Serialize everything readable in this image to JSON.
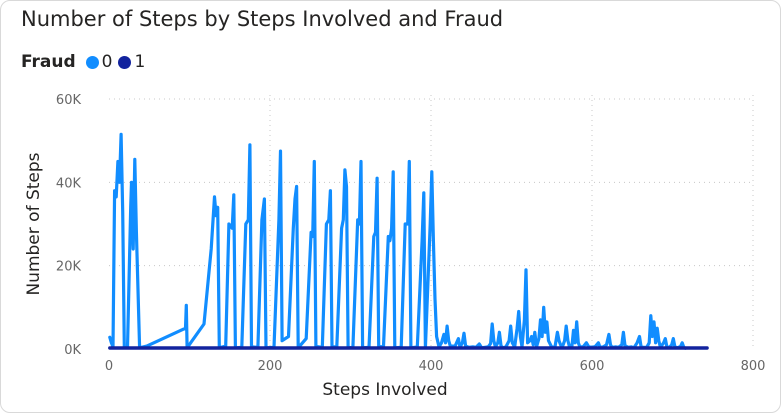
{
  "chart_data": {
    "type": "line",
    "title": "Number of Steps by Steps Involved and Fraud",
    "xlabel": "Steps Involved",
    "ylabel": "Number of Steps",
    "xlim": [
      0,
      800
    ],
    "ylim": [
      0,
      60000
    ],
    "x_ticks": [
      "0",
      "200",
      "400",
      "600",
      "800"
    ],
    "y_ticks": [
      "0K",
      "20K",
      "40K",
      "60K"
    ],
    "grid": true,
    "legend": {
      "title": "Fraud",
      "position": "top-left"
    },
    "series": [
      {
        "name": "0",
        "color": "#118DFF",
        "points": [
          [
            1,
            2800
          ],
          [
            3,
            1500
          ],
          [
            5,
            500
          ],
          [
            7,
            38000
          ],
          [
            9,
            36500
          ],
          [
            11,
            45000
          ],
          [
            13,
            40000
          ],
          [
            15,
            51500
          ],
          [
            17,
            33000
          ],
          [
            19,
            500
          ],
          [
            23,
            300
          ],
          [
            27,
            34000
          ],
          [
            28,
            40000
          ],
          [
            30,
            24000
          ],
          [
            32,
            45500
          ],
          [
            34,
            28000
          ],
          [
            38,
            300
          ],
          [
            47,
            700
          ],
          [
            95,
            5000
          ],
          [
            96,
            10500
          ],
          [
            97,
            300
          ],
          [
            118,
            6000
          ],
          [
            127,
            24000
          ],
          [
            131,
            36500
          ],
          [
            133,
            32000
          ],
          [
            135,
            34000
          ],
          [
            137,
            300
          ],
          [
            145,
            700
          ],
          [
            149,
            30000
          ],
          [
            153,
            29000
          ],
          [
            155,
            37000
          ],
          [
            157,
            300
          ],
          [
            165,
            400
          ],
          [
            170,
            30000
          ],
          [
            173,
            31000
          ],
          [
            175,
            49000
          ],
          [
            177,
            500
          ],
          [
            185,
            400
          ],
          [
            190,
            31000
          ],
          [
            193,
            36000
          ],
          [
            195,
            300
          ],
          [
            205,
            400
          ],
          [
            211,
            31000
          ],
          [
            213,
            47500
          ],
          [
            215,
            2000
          ],
          [
            223,
            3000
          ],
          [
            229,
            29000
          ],
          [
            231,
            36000
          ],
          [
            233,
            39000
          ],
          [
            235,
            300
          ],
          [
            245,
            2500
          ],
          [
            251,
            28000
          ],
          [
            253,
            27000
          ],
          [
            255,
            45000
          ],
          [
            257,
            600
          ],
          [
            265,
            400
          ],
          [
            270,
            30000
          ],
          [
            273,
            31000
          ],
          [
            275,
            38000
          ],
          [
            277,
            500
          ],
          [
            283,
            500
          ],
          [
            289,
            29000
          ],
          [
            291,
            31000
          ],
          [
            293,
            43000
          ],
          [
            295,
            39000
          ],
          [
            297,
            300
          ],
          [
            303,
            400
          ],
          [
            309,
            31000
          ],
          [
            311,
            30000
          ],
          [
            313,
            45000
          ],
          [
            315,
            300
          ],
          [
            323,
            400
          ],
          [
            329,
            27000
          ],
          [
            331,
            28000
          ],
          [
            333,
            41000
          ],
          [
            335,
            500
          ],
          [
            341,
            600
          ],
          [
            347,
            27000
          ],
          [
            349,
            26000
          ],
          [
            351,
            29000
          ],
          [
            353,
            42500
          ],
          [
            355,
            300
          ],
          [
            363,
            400
          ],
          [
            368,
            30000
          ],
          [
            371,
            30000
          ],
          [
            373,
            45000
          ],
          [
            375,
            300
          ],
          [
            383,
            500
          ],
          [
            389,
            26000
          ],
          [
            391,
            37500
          ],
          [
            393,
            300
          ],
          [
            399,
            30000
          ],
          [
            401,
            42500
          ],
          [
            403,
            26000
          ],
          [
            405,
            12000
          ],
          [
            407,
            3000
          ],
          [
            410,
            500
          ],
          [
            413,
            1500
          ],
          [
            416,
            3500
          ],
          [
            418,
            1500
          ],
          [
            420,
            5500
          ],
          [
            422,
            2000
          ],
          [
            424,
            700
          ],
          [
            430,
            700
          ],
          [
            434,
            2500
          ],
          [
            436,
            400
          ],
          [
            439,
            1500
          ],
          [
            441,
            3800
          ],
          [
            443,
            700
          ],
          [
            447,
            400
          ],
          [
            452,
            500
          ],
          [
            456,
            400
          ],
          [
            460,
            1200
          ],
          [
            463,
            300
          ],
          [
            467,
            400
          ],
          [
            471,
            500
          ],
          [
            474,
            1300
          ],
          [
            476,
            6000
          ],
          [
            478,
            2000
          ],
          [
            480,
            500
          ],
          [
            483,
            1500
          ],
          [
            485,
            4000
          ],
          [
            487,
            800
          ],
          [
            489,
            300
          ],
          [
            493,
            500
          ],
          [
            497,
            2000
          ],
          [
            499,
            5500
          ],
          [
            501,
            1500
          ],
          [
            504,
            500
          ],
          [
            507,
            5000
          ],
          [
            509,
            9000
          ],
          [
            511,
            3000
          ],
          [
            513,
            500
          ],
          [
            516,
            7000
          ],
          [
            518,
            19000
          ],
          [
            520,
            1500
          ],
          [
            523,
            2000
          ],
          [
            525,
            3000
          ],
          [
            527,
            1000
          ],
          [
            529,
            4000
          ],
          [
            531,
            500
          ],
          [
            534,
            2500
          ],
          [
            536,
            7000
          ],
          [
            538,
            3000
          ],
          [
            540,
            10000
          ],
          [
            542,
            4000
          ],
          [
            544,
            6500
          ],
          [
            546,
            2000
          ],
          [
            550,
            400
          ],
          [
            554,
            500
          ],
          [
            557,
            4000
          ],
          [
            559,
            2000
          ],
          [
            561,
            1000
          ],
          [
            563,
            400
          ],
          [
            566,
            2000
          ],
          [
            568,
            5500
          ],
          [
            570,
            2000
          ],
          [
            572,
            500
          ],
          [
            575,
            600
          ],
          [
            577,
            4500
          ],
          [
            579,
            1500
          ],
          [
            581,
            6500
          ],
          [
            583,
            1500
          ],
          [
            585,
            500
          ],
          [
            589,
            500
          ],
          [
            593,
            1500
          ],
          [
            596,
            500
          ],
          [
            600,
            400
          ],
          [
            604,
            600
          ],
          [
            608,
            1500
          ],
          [
            610,
            400
          ],
          [
            614,
            500
          ],
          [
            618,
            1000
          ],
          [
            621,
            3500
          ],
          [
            623,
            1000
          ],
          [
            625,
            400
          ],
          [
            630,
            500
          ],
          [
            633,
            400
          ],
          [
            637,
            1000
          ],
          [
            639,
            4000
          ],
          [
            641,
            800
          ],
          [
            645,
            400
          ],
          [
            649,
            500
          ],
          [
            652,
            300
          ],
          [
            656,
            1500
          ],
          [
            659,
            3000
          ],
          [
            661,
            500
          ],
          [
            664,
            400
          ],
          [
            668,
            400
          ],
          [
            671,
            1500
          ],
          [
            673,
            8000
          ],
          [
            675,
            3000
          ],
          [
            677,
            6500
          ],
          [
            679,
            1500
          ],
          [
            681,
            5000
          ],
          [
            683,
            2000
          ],
          [
            685,
            400
          ],
          [
            689,
            1500
          ],
          [
            691,
            2500
          ],
          [
            693,
            500
          ],
          [
            696,
            400
          ],
          [
            699,
            1000
          ],
          [
            701,
            2500
          ],
          [
            703,
            500
          ],
          [
            706,
            300
          ],
          [
            710,
            600
          ],
          [
            712,
            1500
          ],
          [
            714,
            400
          ],
          [
            716,
            200
          ]
        ]
      },
      {
        "name": "1",
        "color": "#12239E",
        "points": [
          [
            1,
            250
          ],
          [
            100,
            250
          ],
          [
            200,
            250
          ],
          [
            300,
            250
          ],
          [
            400,
            250
          ],
          [
            500,
            250
          ],
          [
            600,
            250
          ],
          [
            700,
            250
          ],
          [
            743,
            250
          ]
        ]
      }
    ]
  }
}
